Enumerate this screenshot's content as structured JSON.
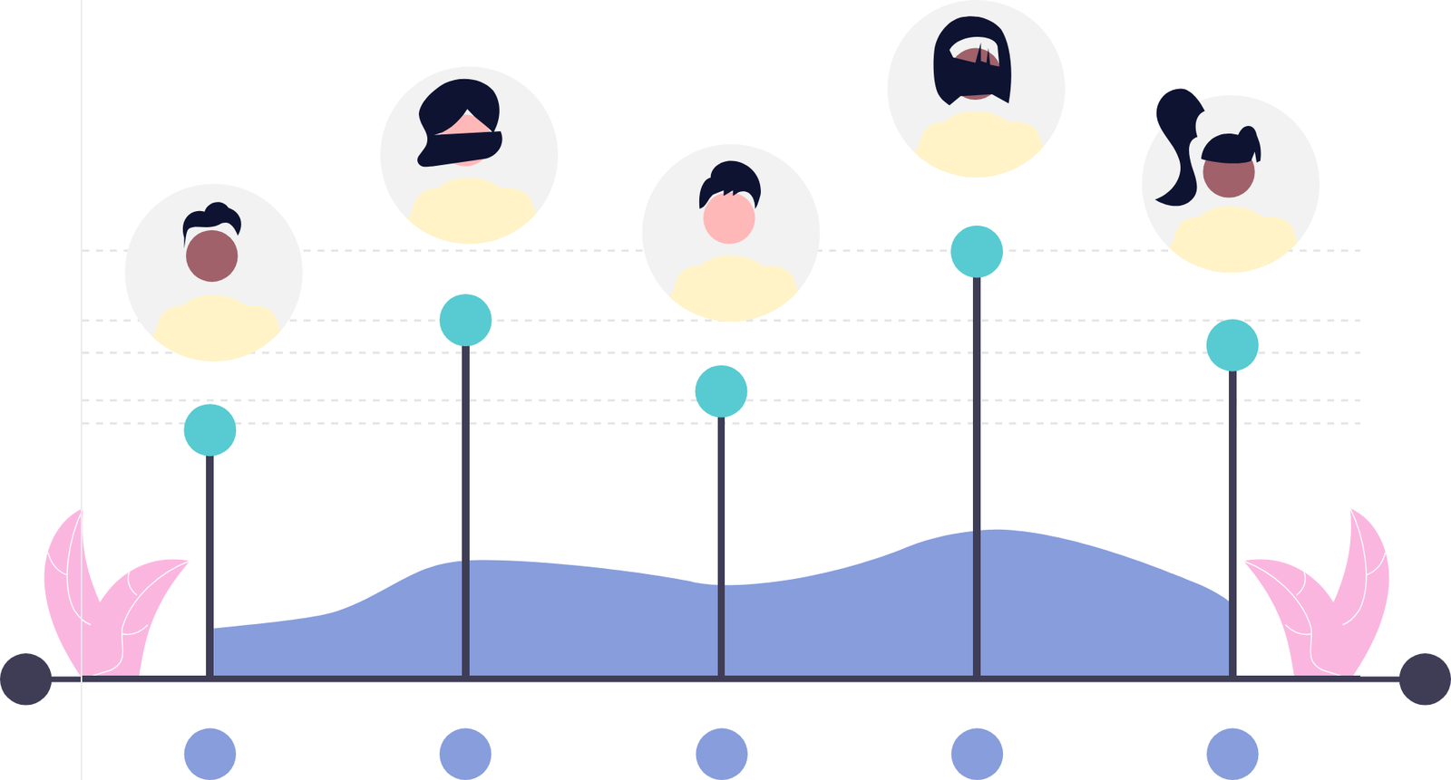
{
  "chart_data": {
    "type": "lollipop",
    "categories": [
      null,
      null,
      null,
      null,
      null
    ],
    "values": [
      36.6,
      52.8,
      42.3,
      62.9,
      49.1
    ],
    "color": "#57cbd1",
    "ylim": [
      -15,
      100
    ],
    "yticks": [
      37.6,
      41,
      48,
      52.8,
      63.1
    ],
    "grid": true,
    "tick_labels": false
  }
}
